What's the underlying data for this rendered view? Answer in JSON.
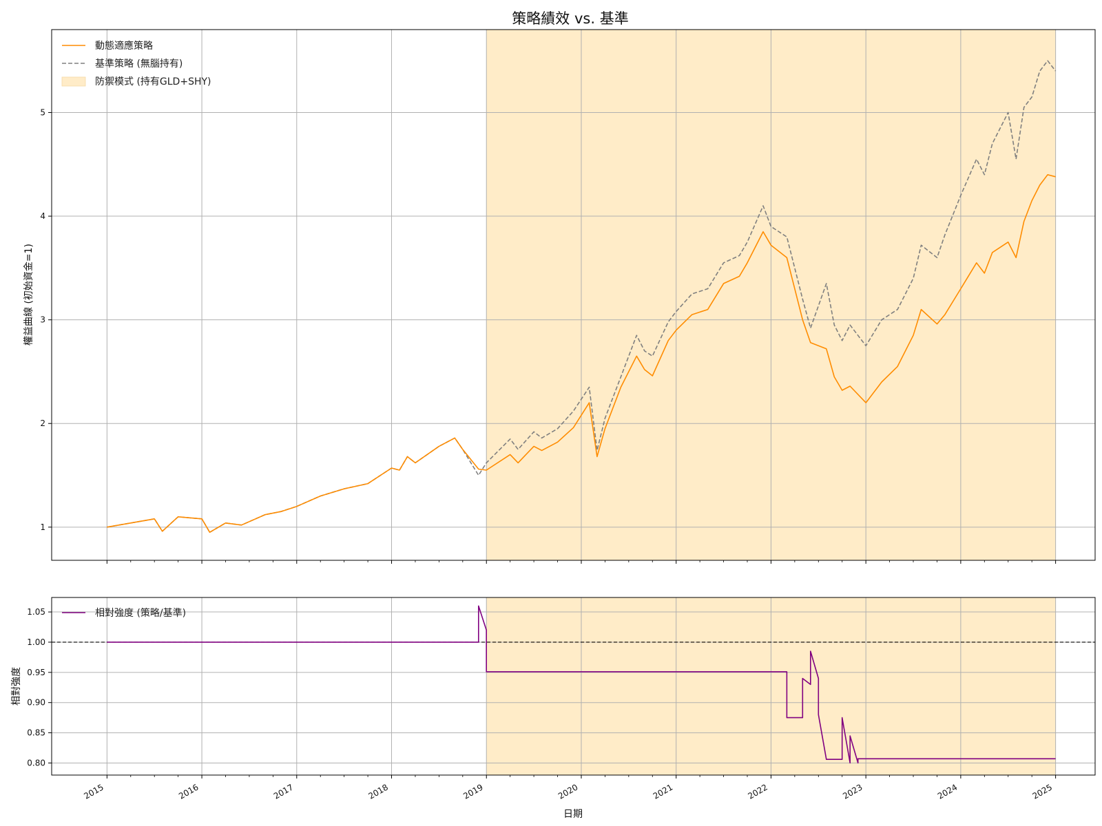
{
  "figure": {
    "title": "策略績效 vs. 基準",
    "xlabel": "日期"
  },
  "colors": {
    "strategy": "#ff8c00",
    "benchmark": "#7f7f7f",
    "defense": "#ffecc8",
    "relative": "#800080"
  },
  "chart_data": [
    {
      "type": "line",
      "title": "策略績效 vs. 基準",
      "ylabel": "權益曲線 (初始資金=1)",
      "x_ticks": [
        "2015",
        "2016",
        "2017",
        "2018",
        "2019",
        "2020",
        "2021",
        "2022",
        "2023",
        "2024",
        "2025"
      ],
      "y_ticks": [
        "1",
        "2",
        "3",
        "4",
        "5"
      ],
      "xlim": [
        "2014-06",
        "2025-06"
      ],
      "ylim": [
        0.68,
        5.8
      ],
      "grid": true,
      "legend_position": "top-left",
      "legend": [
        {
          "label": "動態適應策略",
          "style": "solid-orange"
        },
        {
          "label": "基準策略 (無腦持有)",
          "style": "dashed-gray"
        },
        {
          "label": "防禦模式 (持有GLD+SHY)",
          "style": "orange-area"
        }
      ],
      "shaded_region": {
        "label": "防禦模式 (持有GLD+SHY)",
        "start": "2019-01",
        "end": "2025-01"
      },
      "series": [
        {
          "name": "動態適應策略",
          "points": [
            [
              "2015-01",
              1.0
            ],
            [
              "2015-04",
              1.04
            ],
            [
              "2015-07",
              1.08
            ],
            [
              "2015-08",
              0.96
            ],
            [
              "2015-10",
              1.1
            ],
            [
              "2016-01",
              1.08
            ],
            [
              "2016-02",
              0.95
            ],
            [
              "2016-04",
              1.04
            ],
            [
              "2016-06",
              1.02
            ],
            [
              "2016-09",
              1.12
            ],
            [
              "2016-11",
              1.15
            ],
            [
              "2017-01",
              1.2
            ],
            [
              "2017-04",
              1.3
            ],
            [
              "2017-07",
              1.37
            ],
            [
              "2017-10",
              1.42
            ],
            [
              "2018-01",
              1.57
            ],
            [
              "2018-02",
              1.55
            ],
            [
              "2018-03",
              1.68
            ],
            [
              "2018-04",
              1.62
            ],
            [
              "2018-07",
              1.78
            ],
            [
              "2018-09",
              1.86
            ],
            [
              "2018-10",
              1.75
            ],
            [
              "2018-12",
              1.56
            ],
            [
              "2019-01",
              1.55
            ],
            [
              "2019-04",
              1.7
            ],
            [
              "2019-05",
              1.62
            ],
            [
              "2019-07",
              1.78
            ],
            [
              "2019-08",
              1.74
            ],
            [
              "2019-10",
              1.82
            ],
            [
              "2019-12",
              1.96
            ],
            [
              "2020-02",
              2.2
            ],
            [
              "2020-03",
              1.68
            ],
            [
              "2020-04",
              1.95
            ],
            [
              "2020-06",
              2.35
            ],
            [
              "2020-08",
              2.65
            ],
            [
              "2020-09",
              2.52
            ],
            [
              "2020-10",
              2.46
            ],
            [
              "2020-12",
              2.8
            ],
            [
              "2021-01",
              2.9
            ],
            [
              "2021-03",
              3.05
            ],
            [
              "2021-05",
              3.1
            ],
            [
              "2021-07",
              3.35
            ],
            [
              "2021-09",
              3.42
            ],
            [
              "2021-10",
              3.55
            ],
            [
              "2021-12",
              3.85
            ],
            [
              "2022-01",
              3.72
            ],
            [
              "2022-03",
              3.6
            ],
            [
              "2022-05",
              3.0
            ],
            [
              "2022-06",
              2.78
            ],
            [
              "2022-08",
              2.72
            ],
            [
              "2022-09",
              2.45
            ],
            [
              "2022-10",
              2.32
            ],
            [
              "2022-11",
              2.36
            ],
            [
              "2023-01",
              2.2
            ],
            [
              "2023-03",
              2.4
            ],
            [
              "2023-05",
              2.55
            ],
            [
              "2023-07",
              2.85
            ],
            [
              "2023-08",
              3.1
            ],
            [
              "2023-10",
              2.96
            ],
            [
              "2023-11",
              3.05
            ],
            [
              "2024-01",
              3.3
            ],
            [
              "2024-03",
              3.55
            ],
            [
              "2024-04",
              3.45
            ],
            [
              "2024-05",
              3.65
            ],
            [
              "2024-07",
              3.75
            ],
            [
              "2024-08",
              3.6
            ],
            [
              "2024-09",
              3.95
            ],
            [
              "2024-10",
              4.15
            ],
            [
              "2024-11",
              4.3
            ],
            [
              "2024-12",
              4.4
            ],
            [
              "2025-01",
              4.38
            ]
          ]
        },
        {
          "name": "基準策略 (無腦持有)",
          "points": [
            [
              "2015-01",
              1.0
            ],
            [
              "2015-04",
              1.04
            ],
            [
              "2015-07",
              1.08
            ],
            [
              "2015-08",
              0.96
            ],
            [
              "2015-10",
              1.1
            ],
            [
              "2016-01",
              1.08
            ],
            [
              "2016-02",
              0.95
            ],
            [
              "2016-04",
              1.04
            ],
            [
              "2016-06",
              1.02
            ],
            [
              "2016-09",
              1.12
            ],
            [
              "2016-11",
              1.15
            ],
            [
              "2017-01",
              1.2
            ],
            [
              "2017-04",
              1.3
            ],
            [
              "2017-07",
              1.37
            ],
            [
              "2017-10",
              1.42
            ],
            [
              "2018-01",
              1.57
            ],
            [
              "2018-02",
              1.55
            ],
            [
              "2018-03",
              1.68
            ],
            [
              "2018-04",
              1.62
            ],
            [
              "2018-07",
              1.78
            ],
            [
              "2018-09",
              1.86
            ],
            [
              "2018-10",
              1.75
            ],
            [
              "2018-12",
              1.5
            ],
            [
              "2019-01",
              1.62
            ],
            [
              "2019-04",
              1.85
            ],
            [
              "2019-05",
              1.75
            ],
            [
              "2019-07",
              1.92
            ],
            [
              "2019-08",
              1.86
            ],
            [
              "2019-10",
              1.95
            ],
            [
              "2019-12",
              2.12
            ],
            [
              "2020-02",
              2.35
            ],
            [
              "2020-03",
              1.74
            ],
            [
              "2020-04",
              2.05
            ],
            [
              "2020-06",
              2.45
            ],
            [
              "2020-08",
              2.85
            ],
            [
              "2020-09",
              2.7
            ],
            [
              "2020-10",
              2.65
            ],
            [
              "2020-12",
              2.98
            ],
            [
              "2021-01",
              3.08
            ],
            [
              "2021-03",
              3.25
            ],
            [
              "2021-05",
              3.3
            ],
            [
              "2021-07",
              3.55
            ],
            [
              "2021-09",
              3.62
            ],
            [
              "2021-10",
              3.75
            ],
            [
              "2021-12",
              4.1
            ],
            [
              "2022-01",
              3.9
            ],
            [
              "2022-03",
              3.8
            ],
            [
              "2022-05",
              3.2
            ],
            [
              "2022-06",
              2.92
            ],
            [
              "2022-08",
              3.35
            ],
            [
              "2022-09",
              2.95
            ],
            [
              "2022-10",
              2.8
            ],
            [
              "2022-11",
              2.95
            ],
            [
              "2023-01",
              2.75
            ],
            [
              "2023-03",
              3.0
            ],
            [
              "2023-05",
              3.1
            ],
            [
              "2023-07",
              3.4
            ],
            [
              "2023-08",
              3.72
            ],
            [
              "2023-10",
              3.6
            ],
            [
              "2023-11",
              3.82
            ],
            [
              "2024-01",
              4.2
            ],
            [
              "2024-03",
              4.55
            ],
            [
              "2024-04",
              4.4
            ],
            [
              "2024-05",
              4.7
            ],
            [
              "2024-07",
              5.0
            ],
            [
              "2024-08",
              4.55
            ],
            [
              "2024-09",
              5.05
            ],
            [
              "2024-10",
              5.15
            ],
            [
              "2024-11",
              5.4
            ],
            [
              "2024-12",
              5.5
            ],
            [
              "2025-01",
              5.4
            ]
          ]
        }
      ]
    },
    {
      "type": "line",
      "ylabel": "相對強度",
      "x_ticks": [
        "2015",
        "2016",
        "2017",
        "2018",
        "2019",
        "2020",
        "2021",
        "2022",
        "2023",
        "2024",
        "2025"
      ],
      "y_ticks": [
        "0.80",
        "0.85",
        "0.90",
        "0.95",
        "1.00",
        "1.05"
      ],
      "xlim": [
        "2014-06",
        "2025-06"
      ],
      "ylim": [
        0.78,
        1.074
      ],
      "grid": true,
      "legend_position": "top-left",
      "legend": [
        {
          "label": "相對強度 (策略/基準)",
          "style": "solid-purple"
        }
      ],
      "reference_line": 1.0,
      "shaded_region": {
        "label": "防禦模式 (持有GLD+SHY)",
        "start": "2019-01",
        "end": "2025-01"
      },
      "series": [
        {
          "name": "相對強度 (策略/基準)",
          "points": [
            [
              "2015-01",
              1.0
            ],
            [
              "2018-12",
              1.0
            ],
            [
              "2018-12",
              1.06
            ],
            [
              "2019-01",
              1.02
            ],
            [
              "2019-01",
              0.97
            ],
            [
              "2019-01",
              0.951
            ],
            [
              "2022-03",
              0.951
            ],
            [
              "2022-03",
              0.875
            ],
            [
              "2022-05",
              0.875
            ],
            [
              "2022-05",
              0.94
            ],
            [
              "2022-06",
              0.93
            ],
            [
              "2022-06",
              0.985
            ],
            [
              "2022-07",
              0.94
            ],
            [
              "2022-07",
              0.88
            ],
            [
              "2022-08",
              0.806
            ],
            [
              "2022-10",
              0.806
            ],
            [
              "2022-10",
              0.835
            ],
            [
              "2022-10",
              0.875
            ],
            [
              "2022-11",
              0.8
            ],
            [
              "2022-11",
              0.845
            ],
            [
              "2022-12",
              0.8
            ],
            [
              "2022-12",
              0.807
            ],
            [
              "2025-01",
              0.807
            ]
          ]
        }
      ]
    }
  ]
}
